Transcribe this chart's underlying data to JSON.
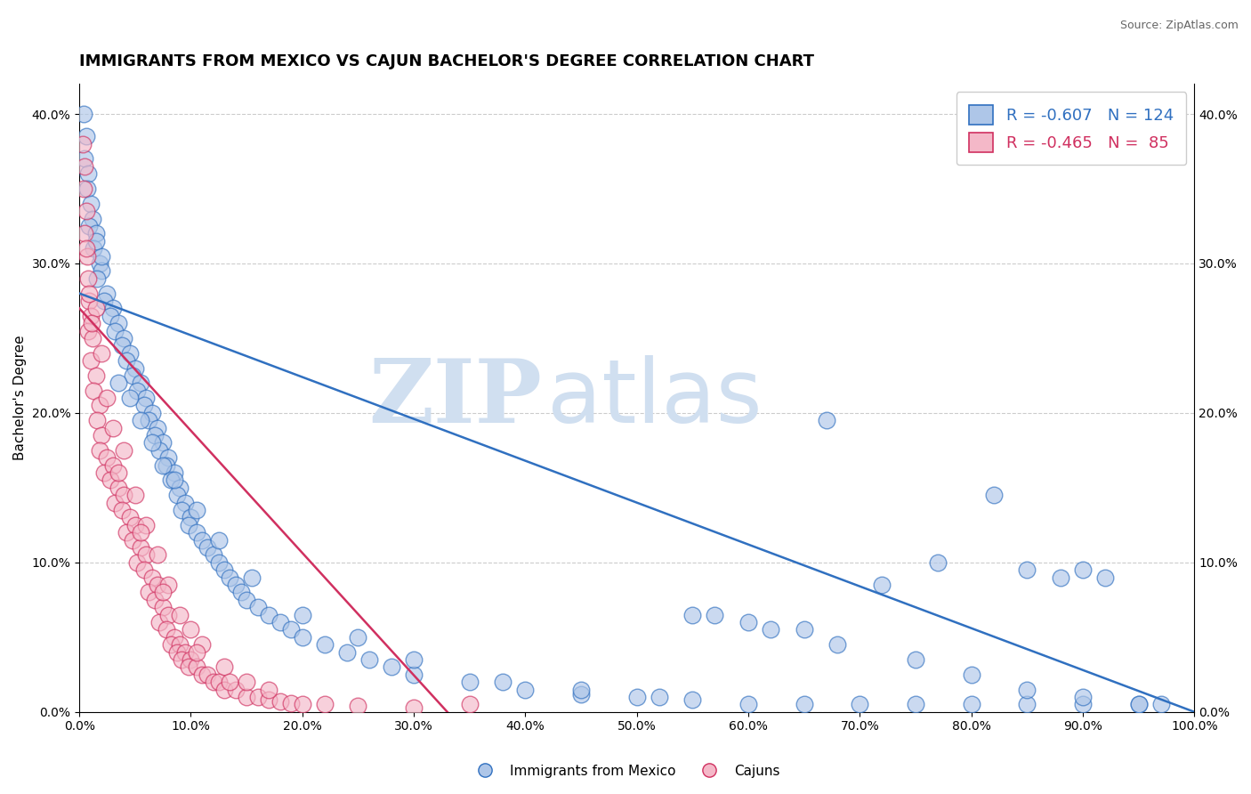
{
  "title": "IMMIGRANTS FROM MEXICO VS CAJUN BACHELOR'S DEGREE CORRELATION CHART",
  "source": "Source: ZipAtlas.com",
  "ylabel": "Bachelor's Degree",
  "xlim": [
    0.0,
    100.0
  ],
  "ylim": [
    0.0,
    42.0
  ],
  "xticks": [
    0.0,
    10.0,
    20.0,
    30.0,
    40.0,
    50.0,
    60.0,
    70.0,
    80.0,
    90.0,
    100.0
  ],
  "yticks": [
    0.0,
    10.0,
    20.0,
    30.0,
    40.0
  ],
  "blue_r": -0.607,
  "blue_n": 124,
  "pink_r": -0.465,
  "pink_n": 85,
  "blue_color": "#aec6e8",
  "pink_color": "#f4b8c8",
  "blue_line_color": "#3070c0",
  "pink_line_color": "#d03060",
  "blue_scatter": [
    [
      0.4,
      40.0
    ],
    [
      0.6,
      38.5
    ],
    [
      0.5,
      37.0
    ],
    [
      0.8,
      36.0
    ],
    [
      0.7,
      35.0
    ],
    [
      1.0,
      34.0
    ],
    [
      1.2,
      33.0
    ],
    [
      0.9,
      32.5
    ],
    [
      1.5,
      32.0
    ],
    [
      1.3,
      31.0
    ],
    [
      1.8,
      30.0
    ],
    [
      2.0,
      29.5
    ],
    [
      1.6,
      29.0
    ],
    [
      2.5,
      28.0
    ],
    [
      2.2,
      27.5
    ],
    [
      3.0,
      27.0
    ],
    [
      2.8,
      26.5
    ],
    [
      3.5,
      26.0
    ],
    [
      3.2,
      25.5
    ],
    [
      4.0,
      25.0
    ],
    [
      3.8,
      24.5
    ],
    [
      4.5,
      24.0
    ],
    [
      4.2,
      23.5
    ],
    [
      5.0,
      23.0
    ],
    [
      4.8,
      22.5
    ],
    [
      5.5,
      22.0
    ],
    [
      5.2,
      21.5
    ],
    [
      6.0,
      21.0
    ],
    [
      5.8,
      20.5
    ],
    [
      6.5,
      20.0
    ],
    [
      6.2,
      19.5
    ],
    [
      7.0,
      19.0
    ],
    [
      6.8,
      18.5
    ],
    [
      7.5,
      18.0
    ],
    [
      7.2,
      17.5
    ],
    [
      8.0,
      17.0
    ],
    [
      7.8,
      16.5
    ],
    [
      8.5,
      16.0
    ],
    [
      8.2,
      15.5
    ],
    [
      9.0,
      15.0
    ],
    [
      8.8,
      14.5
    ],
    [
      9.5,
      14.0
    ],
    [
      9.2,
      13.5
    ],
    [
      10.0,
      13.0
    ],
    [
      9.8,
      12.5
    ],
    [
      10.5,
      12.0
    ],
    [
      11.0,
      11.5
    ],
    [
      11.5,
      11.0
    ],
    [
      12.0,
      10.5
    ],
    [
      12.5,
      10.0
    ],
    [
      13.0,
      9.5
    ],
    [
      13.5,
      9.0
    ],
    [
      14.0,
      8.5
    ],
    [
      14.5,
      8.0
    ],
    [
      15.0,
      7.5
    ],
    [
      16.0,
      7.0
    ],
    [
      17.0,
      6.5
    ],
    [
      18.0,
      6.0
    ],
    [
      19.0,
      5.5
    ],
    [
      20.0,
      5.0
    ],
    [
      22.0,
      4.5
    ],
    [
      24.0,
      4.0
    ],
    [
      26.0,
      3.5
    ],
    [
      28.0,
      3.0
    ],
    [
      30.0,
      2.5
    ],
    [
      35.0,
      2.0
    ],
    [
      40.0,
      1.5
    ],
    [
      45.0,
      1.2
    ],
    [
      50.0,
      1.0
    ],
    [
      55.0,
      0.8
    ],
    [
      55.0,
      6.5
    ],
    [
      60.0,
      6.0
    ],
    [
      60.0,
      0.5
    ],
    [
      65.0,
      5.5
    ],
    [
      65.0,
      0.5
    ],
    [
      67.0,
      19.5
    ],
    [
      70.0,
      0.5
    ],
    [
      72.0,
      8.5
    ],
    [
      75.0,
      0.5
    ],
    [
      77.0,
      10.0
    ],
    [
      80.0,
      0.5
    ],
    [
      82.0,
      14.5
    ],
    [
      85.0,
      0.5
    ],
    [
      85.0,
      9.5
    ],
    [
      88.0,
      9.0
    ],
    [
      90.0,
      0.5
    ],
    [
      90.0,
      9.5
    ],
    [
      92.0,
      9.0
    ],
    [
      95.0,
      0.5
    ],
    [
      97.0,
      0.5
    ],
    [
      3.5,
      22.0
    ],
    [
      4.5,
      21.0
    ],
    [
      5.5,
      19.5
    ],
    [
      6.5,
      18.0
    ],
    [
      7.5,
      16.5
    ],
    [
      8.5,
      15.5
    ],
    [
      10.5,
      13.5
    ],
    [
      12.5,
      11.5
    ],
    [
      15.5,
      9.0
    ],
    [
      20.0,
      6.5
    ],
    [
      25.0,
      5.0
    ],
    [
      30.0,
      3.5
    ],
    [
      38.0,
      2.0
    ],
    [
      45.0,
      1.5
    ],
    [
      52.0,
      1.0
    ],
    [
      57.0,
      6.5
    ],
    [
      62.0,
      5.5
    ],
    [
      68.0,
      4.5
    ],
    [
      75.0,
      3.5
    ],
    [
      80.0,
      2.5
    ],
    [
      85.0,
      1.5
    ],
    [
      90.0,
      1.0
    ],
    [
      95.0,
      0.5
    ],
    [
      2.0,
      30.5
    ],
    [
      1.5,
      31.5
    ]
  ],
  "pink_scatter": [
    [
      0.3,
      38.0
    ],
    [
      0.5,
      36.5
    ],
    [
      0.4,
      35.0
    ],
    [
      0.6,
      33.5
    ],
    [
      0.5,
      32.0
    ],
    [
      0.7,
      30.5
    ],
    [
      0.8,
      29.0
    ],
    [
      0.9,
      27.5
    ],
    [
      1.0,
      26.5
    ],
    [
      0.8,
      25.5
    ],
    [
      1.2,
      25.0
    ],
    [
      1.0,
      23.5
    ],
    [
      1.5,
      22.5
    ],
    [
      1.3,
      21.5
    ],
    [
      1.8,
      20.5
    ],
    [
      1.6,
      19.5
    ],
    [
      2.0,
      18.5
    ],
    [
      1.8,
      17.5
    ],
    [
      2.5,
      17.0
    ],
    [
      2.2,
      16.0
    ],
    [
      3.0,
      16.5
    ],
    [
      2.8,
      15.5
    ],
    [
      3.5,
      15.0
    ],
    [
      3.2,
      14.0
    ],
    [
      4.0,
      14.5
    ],
    [
      3.8,
      13.5
    ],
    [
      4.5,
      13.0
    ],
    [
      4.2,
      12.0
    ],
    [
      5.0,
      12.5
    ],
    [
      4.8,
      11.5
    ],
    [
      5.5,
      11.0
    ],
    [
      5.2,
      10.0
    ],
    [
      6.0,
      10.5
    ],
    [
      5.8,
      9.5
    ],
    [
      6.5,
      9.0
    ],
    [
      6.2,
      8.0
    ],
    [
      7.0,
      8.5
    ],
    [
      6.8,
      7.5
    ],
    [
      7.5,
      7.0
    ],
    [
      7.2,
      6.0
    ],
    [
      8.0,
      6.5
    ],
    [
      7.8,
      5.5
    ],
    [
      8.5,
      5.0
    ],
    [
      8.2,
      4.5
    ],
    [
      9.0,
      4.5
    ],
    [
      8.8,
      4.0
    ],
    [
      9.5,
      4.0
    ],
    [
      9.2,
      3.5
    ],
    [
      10.0,
      3.5
    ],
    [
      9.8,
      3.0
    ],
    [
      10.5,
      3.0
    ],
    [
      11.0,
      2.5
    ],
    [
      11.5,
      2.5
    ],
    [
      12.0,
      2.0
    ],
    [
      12.5,
      2.0
    ],
    [
      13.0,
      1.5
    ],
    [
      14.0,
      1.5
    ],
    [
      15.0,
      1.0
    ],
    [
      16.0,
      1.0
    ],
    [
      17.0,
      0.8
    ],
    [
      18.0,
      0.7
    ],
    [
      19.0,
      0.6
    ],
    [
      20.0,
      0.5
    ],
    [
      25.0,
      0.4
    ],
    [
      30.0,
      0.3
    ],
    [
      1.5,
      27.0
    ],
    [
      2.0,
      24.0
    ],
    [
      2.5,
      21.0
    ],
    [
      3.0,
      19.0
    ],
    [
      4.0,
      17.5
    ],
    [
      5.0,
      14.5
    ],
    [
      6.0,
      12.5
    ],
    [
      7.0,
      10.5
    ],
    [
      8.0,
      8.5
    ],
    [
      9.0,
      6.5
    ],
    [
      10.0,
      5.5
    ],
    [
      11.0,
      4.5
    ],
    [
      13.0,
      3.0
    ],
    [
      15.0,
      2.0
    ],
    [
      17.0,
      1.5
    ],
    [
      0.6,
      31.0
    ],
    [
      0.9,
      28.0
    ],
    [
      1.1,
      26.0
    ],
    [
      35.0,
      0.5
    ],
    [
      22.0,
      0.5
    ],
    [
      3.5,
      16.0
    ],
    [
      5.5,
      12.0
    ],
    [
      7.5,
      8.0
    ],
    [
      10.5,
      4.0
    ],
    [
      13.5,
      2.0
    ]
  ],
  "blue_line_x0": 0.0,
  "blue_line_y0": 28.0,
  "blue_line_x1": 100.0,
  "blue_line_y1": 0.0,
  "pink_line_x0": 0.0,
  "pink_line_y0": 27.0,
  "pink_line_x1": 33.0,
  "pink_line_y1": 0.0,
  "watermark_zip": "ZIP",
  "watermark_atlas": "atlas",
  "watermark_color": "#d0dff0",
  "legend_label_blue": "Immigrants from Mexico",
  "legend_label_pink": "Cajuns",
  "background_color": "#ffffff",
  "grid_color": "#cccccc",
  "grid_style": "--",
  "title_fontsize": 13,
  "axis_fontsize": 11,
  "tick_fontsize": 10,
  "source_fontsize": 9
}
